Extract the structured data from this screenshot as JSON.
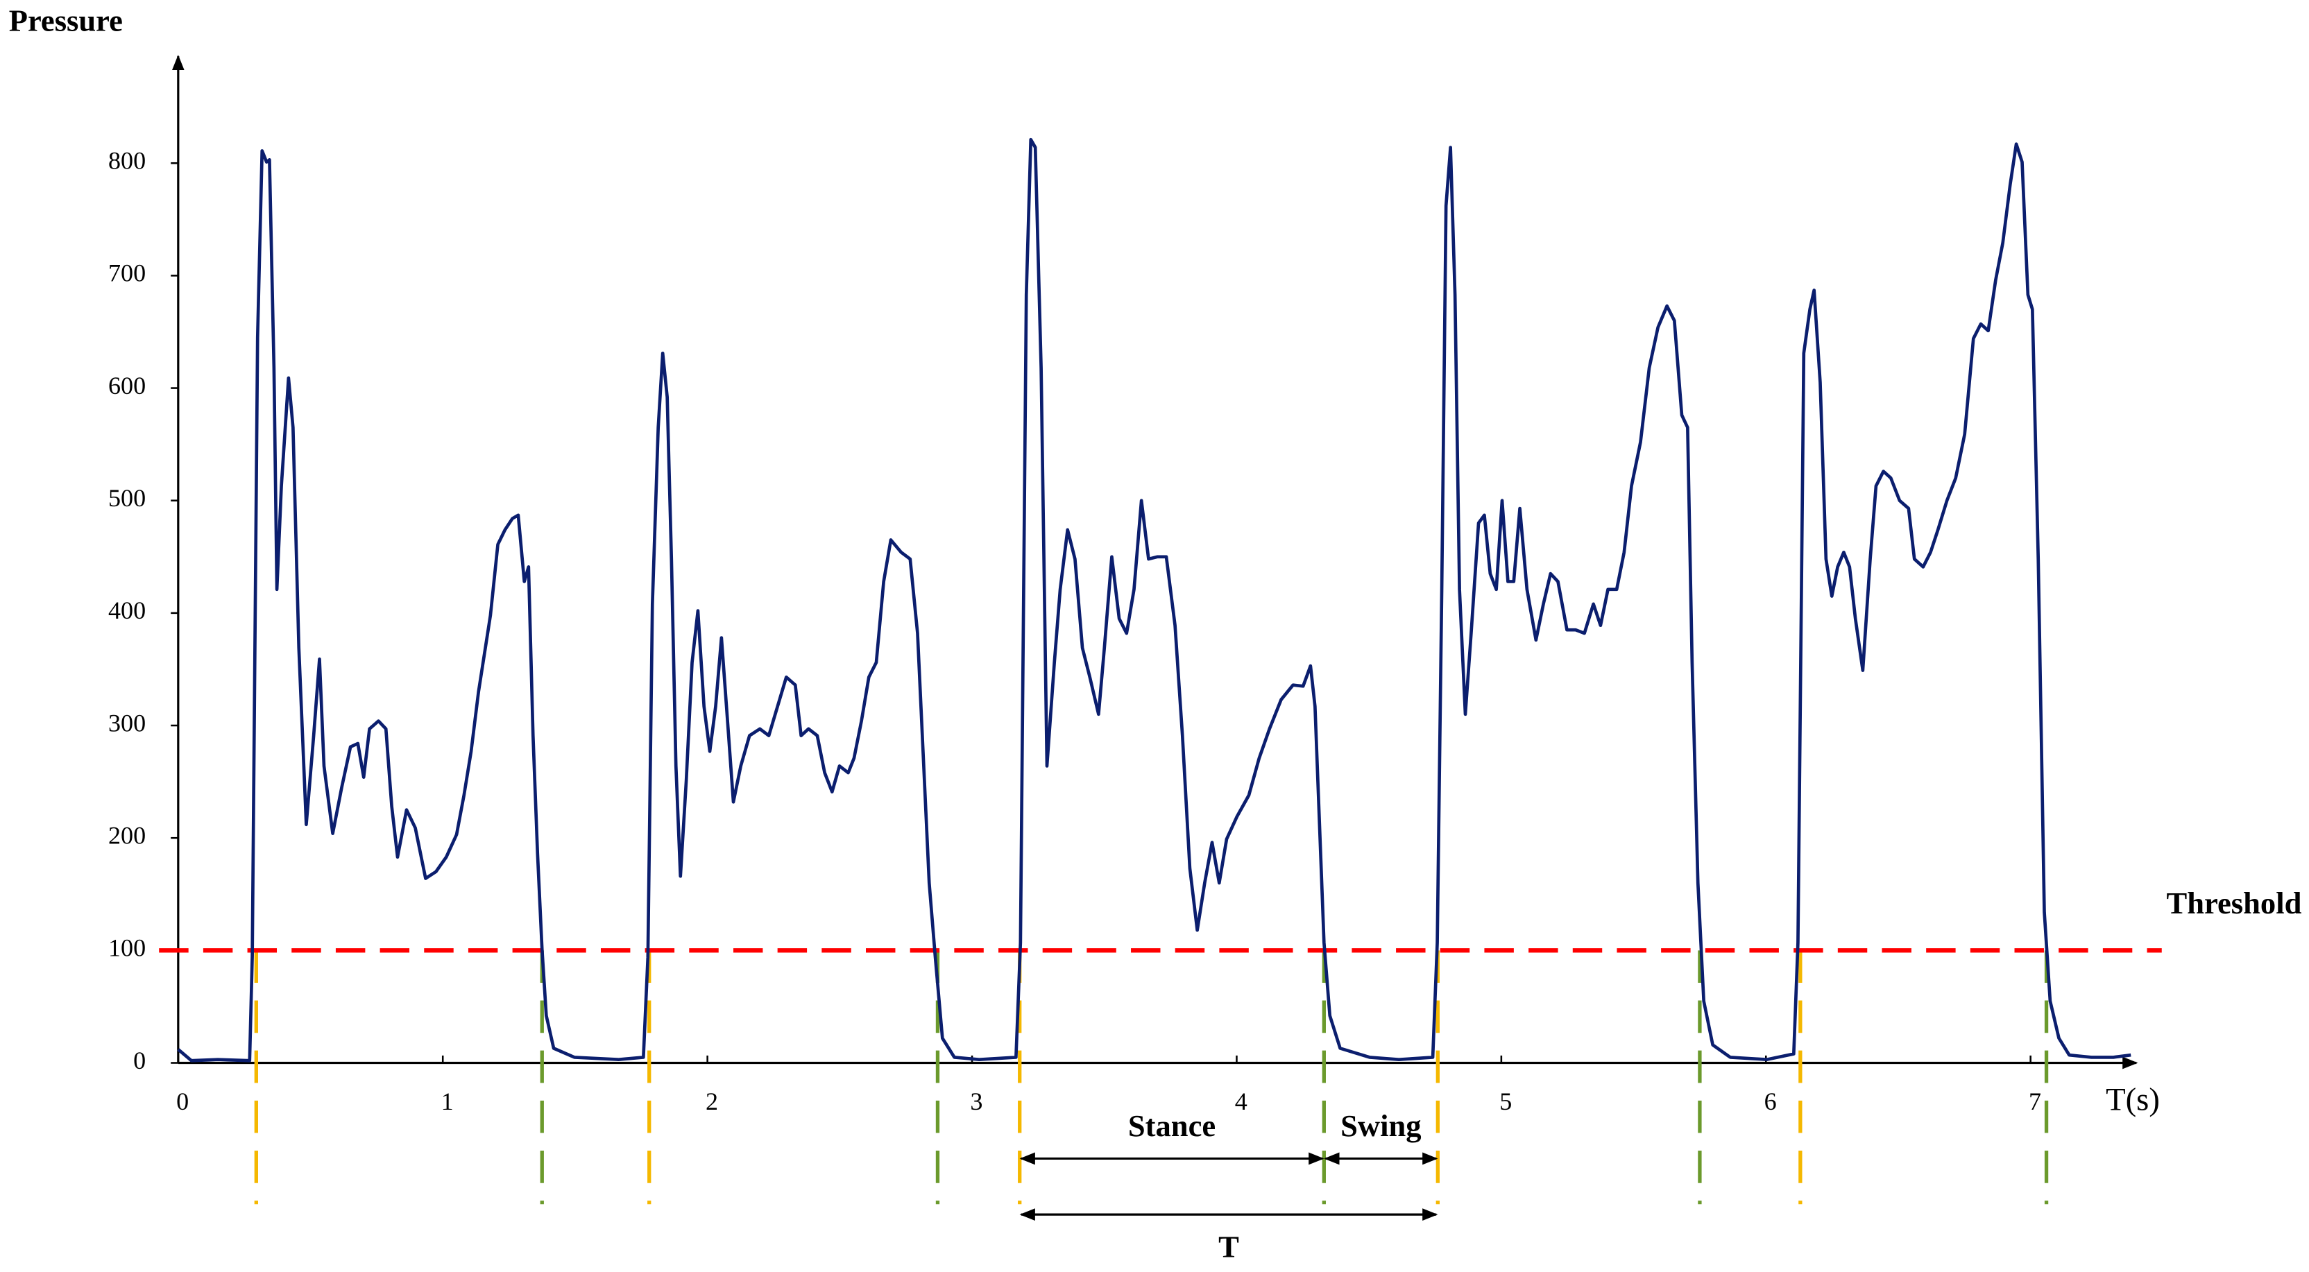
{
  "chart_data": {
    "type": "line",
    "y_label": "Pressure",
    "x_label": "T(s)",
    "color": "#0b1e6e",
    "xlim": [
      0,
      7.4
    ],
    "ylim": [
      0,
      895
    ],
    "xticks": [
      0,
      1,
      2,
      3,
      4,
      5,
      6,
      7
    ],
    "yticks": [
      0,
      100,
      200,
      300,
      400,
      500,
      600,
      700,
      800
    ],
    "x": [
      0,
      0.05,
      0.15,
      0.27,
      0.28,
      0.3,
      0.317,
      0.334,
      0.345,
      0.362,
      0.373,
      0.39,
      0.417,
      0.434,
      0.456,
      0.484,
      0.512,
      0.534,
      0.551,
      0.584,
      0.618,
      0.651,
      0.679,
      0.701,
      0.723,
      0.757,
      0.785,
      0.807,
      0.829,
      0.863,
      0.896,
      0.935,
      0.974,
      1.013,
      1.052,
      1.08,
      1.107,
      1.135,
      1.18,
      1.208,
      1.235,
      1.263,
      1.285,
      1.308,
      1.324,
      1.341,
      1.358,
      1.375,
      1.391,
      1.419,
      1.497,
      1.664,
      1.758,
      1.775,
      1.792,
      1.814,
      1.831,
      1.848,
      1.864,
      1.881,
      1.898,
      1.92,
      1.942,
      1.964,
      1.987,
      2.009,
      2.031,
      2.053,
      2.076,
      2.098,
      2.126,
      2.159,
      2.198,
      2.232,
      2.265,
      2.298,
      2.332,
      2.354,
      2.382,
      2.415,
      2.443,
      2.471,
      2.499,
      2.532,
      2.554,
      2.582,
      2.61,
      2.638,
      2.666,
      2.693,
      2.732,
      2.766,
      2.794,
      2.816,
      2.838,
      2.861,
      2.888,
      2.933,
      3.027,
      3.166,
      3.183,
      3.205,
      3.222,
      3.239,
      3.261,
      3.283,
      3.311,
      3.333,
      3.361,
      3.389,
      3.417,
      3.445,
      3.478,
      3.5,
      3.528,
      3.556,
      3.584,
      3.612,
      3.64,
      3.667,
      3.701,
      3.734,
      3.767,
      3.795,
      3.823,
      3.851,
      3.879,
      3.907,
      3.934,
      3.962,
      4.001,
      4.046,
      4.085,
      4.124,
      4.168,
      4.213,
      4.251,
      4.279,
      4.296,
      4.313,
      4.33,
      4.352,
      4.391,
      4.502,
      4.613,
      4.741,
      4.758,
      4.775,
      4.791,
      4.808,
      4.825,
      4.842,
      4.864,
      4.886,
      4.914,
      4.936,
      4.958,
      4.981,
      5.003,
      5.025,
      5.047,
      5.07,
      5.097,
      5.131,
      5.159,
      5.186,
      5.214,
      5.248,
      5.281,
      5.314,
      5.348,
      5.375,
      5.403,
      5.436,
      5.464,
      5.492,
      5.526,
      5.559,
      5.592,
      5.626,
      5.654,
      5.682,
      5.704,
      5.721,
      5.743,
      5.765,
      5.799,
      5.865,
      6.004,
      6.105,
      6.121,
      6.143,
      6.166,
      6.182,
      6.205,
      6.227,
      6.249,
      6.271,
      6.294,
      6.316,
      6.338,
      6.366,
      6.394,
      6.416,
      6.444,
      6.472,
      6.505,
      6.539,
      6.561,
      6.594,
      6.622,
      6.65,
      6.684,
      6.717,
      6.751,
      6.784,
      6.812,
      6.84,
      6.868,
      6.895,
      6.923,
      6.946,
      6.968,
      6.99,
      7.007,
      7.029,
      7.052,
      7.074,
      7.107,
      7.146,
      7.23,
      7.313,
      7.379
    ],
    "values": [
      12,
      2,
      3,
      2,
      95,
      645,
      811,
      801,
      803,
      618,
      421,
      513,
      609,
      565,
      369,
      212,
      291,
      359,
      264,
      204,
      245,
      281,
      284,
      254,
      297,
      304,
      297,
      228,
      183,
      225,
      209,
      164,
      170,
      183,
      203,
      238,
      277,
      330,
      398,
      461,
      474,
      484,
      487,
      428,
      441,
      291,
      186,
      101,
      42,
      13,
      5,
      3,
      5,
      94,
      408,
      565,
      631,
      592,
      448,
      264,
      166,
      251,
      356,
      402,
      317,
      277,
      317,
      378,
      304,
      232,
      264,
      291,
      297,
      291,
      317,
      343,
      336,
      291,
      297,
      291,
      258,
      241,
      264,
      258,
      271,
      304,
      343,
      356,
      428,
      465,
      454,
      448,
      382,
      271,
      160,
      94,
      22,
      5,
      3,
      5,
      107,
      683,
      821,
      814,
      618,
      264,
      356,
      421,
      474,
      448,
      369,
      343,
      310,
      369,
      450,
      395,
      382,
      421,
      500,
      448,
      450,
      450,
      389,
      291,
      173,
      118,
      160,
      196,
      160,
      199,
      219,
      238,
      271,
      297,
      323,
      336,
      335,
      353,
      317,
      212,
      107,
      42,
      13,
      5,
      3,
      5,
      107,
      421,
      762,
      814,
      683,
      421,
      310,
      382,
      480,
      487,
      435,
      421,
      500,
      428,
      428,
      493,
      421,
      376,
      408,
      435,
      428,
      385,
      385,
      382,
      408,
      389,
      421,
      421,
      454,
      513,
      552,
      618,
      654,
      673,
      660,
      576,
      565,
      356,
      160,
      55,
      16,
      5,
      3,
      8,
      107,
      631,
      670,
      687,
      605,
      448,
      415,
      441,
      454,
      441,
      395,
      349,
      448,
      513,
      526,
      520,
      500,
      493,
      448,
      441,
      454,
      474,
      500,
      520,
      559,
      644,
      657,
      651,
      696,
      729,
      781,
      817,
      801,
      683,
      670,
      448,
      134,
      55,
      22,
      7,
      5,
      5,
      7
    ],
    "threshold": {
      "value": 100,
      "label": "Threshold",
      "color": "#ff0000"
    },
    "heel_strikes": {
      "color": "#f5b800",
      "x": [
        0.295,
        1.78,
        3.18,
        4.76,
        6.13
      ]
    },
    "toe_offs": {
      "color": "#6b9a2c",
      "x": [
        1.375,
        2.87,
        4.33,
        5.75,
        7.06
      ]
    },
    "annotations": [
      {
        "label": "Stance",
        "x": [
          3.18,
          4.33
        ]
      },
      {
        "label": "Swing",
        "x": [
          4.33,
          4.76
        ]
      },
      {
        "label": "T",
        "x": [
          3.18,
          4.76
        ]
      }
    ]
  }
}
